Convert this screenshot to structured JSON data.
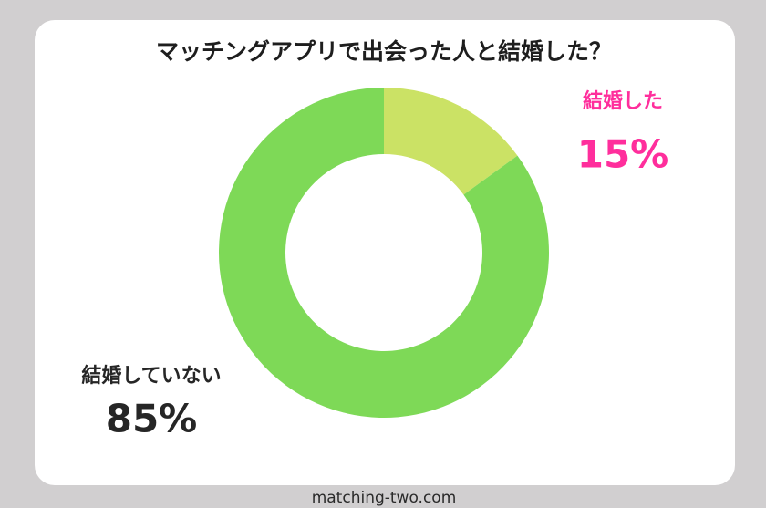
{
  "chart_data": {
    "type": "donut",
    "title": "マッチングアプリで出会った人と結婚した？",
    "categories": [
      "結婚した",
      "結婚していない"
    ],
    "values": [
      15,
      85
    ],
    "value_labels": [
      "15%",
      "85%"
    ],
    "colors": [
      "#cbe265",
      "#7ed957"
    ],
    "source": "matching-two.com"
  }
}
